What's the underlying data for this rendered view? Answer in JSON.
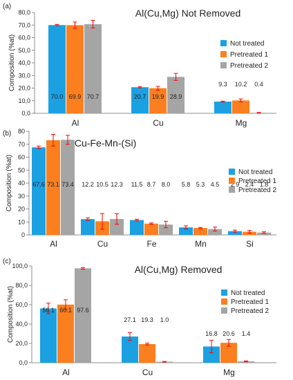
{
  "colors": {
    "not_treated": "#1ba1e2",
    "pretreated_1": "#fb7f1f",
    "pretreated_2": "#a5a5a5",
    "error_bar": "#ff0000",
    "axis": "#8c8c8c",
    "text": "#222222"
  },
  "chart_data": [
    {
      "type": "bar",
      "panel_label": "(a)",
      "title": "Al(Cu,Mg) Not Removed",
      "xlabel": "",
      "ylabel": "Composition (%at)",
      "ylim": [
        0,
        80
      ],
      "ytick_step": 10,
      "ytick_labels": [
        "0,0",
        "10,0",
        "20,0",
        "30,0",
        "40,0",
        "50,0",
        "60,0",
        "70,0",
        "80,0"
      ],
      "categories": [
        "Al",
        "Cu",
        "Mg"
      ],
      "series": [
        {
          "name": "Not treated",
          "values": [
            70.0,
            20.7,
            9.3
          ],
          "errors": [
            0.5,
            0.5,
            0.4
          ],
          "labels": [
            "70.0",
            "20.7",
            "9.3"
          ]
        },
        {
          "name": "Pretreated 1",
          "values": [
            69.9,
            19.9,
            10.2
          ],
          "errors": [
            2.5,
            1.5,
            1.2
          ],
          "labels": [
            "69.9",
            "19.9",
            "10.2"
          ]
        },
        {
          "name": "Pretreated 2",
          "values": [
            70.7,
            28.9,
            0.4
          ],
          "errors": [
            3.0,
            2.8,
            0.3
          ],
          "labels": [
            "70.7",
            "28.9",
            "0.4"
          ]
        }
      ],
      "legend": "right",
      "grid": false
    },
    {
      "type": "bar",
      "panel_label": "(b)",
      "title": "Al-Cu-Fe-Mn-(Si)",
      "xlabel": "",
      "ylabel": "Composition (%at)",
      "ylim": [
        0,
        80
      ],
      "ytick_step": 10,
      "ytick_labels": [
        "0",
        "10",
        "20",
        "30",
        "40",
        "50",
        "60",
        "70",
        "80"
      ],
      "categories": [
        "Al",
        "Cu",
        "Fe",
        "Mn",
        "Si"
      ],
      "series": [
        {
          "name": "Not treated",
          "values": [
            67.6,
            12.2,
            11.5,
            5.8,
            2.9
          ],
          "errors": [
            1.0,
            1.0,
            0.6,
            1.2,
            0.8
          ],
          "labels": [
            "67.6",
            "12.2",
            "11.5",
            "5.8",
            "2.9"
          ]
        },
        {
          "name": "Pretreated 1",
          "values": [
            73.1,
            10.5,
            8.7,
            5.3,
            2.4
          ],
          "errors": [
            4.5,
            6.0,
            0.5,
            0.5,
            1.0
          ],
          "labels": [
            "73.1",
            "10.5",
            "8.7",
            "5.3",
            "2.4"
          ]
        },
        {
          "name": "Pretreated 2",
          "values": [
            73.4,
            12.3,
            8.0,
            4.5,
            1.8
          ],
          "errors": [
            3.5,
            4.0,
            2.5,
            1.5,
            0.6
          ],
          "labels": [
            "73.4",
            "12.3",
            "8.0",
            "4.5",
            "1.8"
          ]
        }
      ],
      "legend": "right",
      "grid": false
    },
    {
      "type": "bar",
      "panel_label": "(c)",
      "title": "Al(Cu,Mg) Removed",
      "xlabel": "",
      "ylabel": "Composition (%at)",
      "ylim": [
        0,
        100
      ],
      "ytick_step": 20,
      "ytick_labels": [
        "0,0",
        "20,0",
        "40,0",
        "60,0",
        "80,0",
        "100,0"
      ],
      "categories": [
        "Al",
        "Cu",
        "Mg"
      ],
      "series": [
        {
          "name": "Not treated",
          "values": [
            56.1,
            27.1,
            16.8
          ],
          "errors": [
            5.5,
            4.0,
            6.5
          ],
          "labels": [
            "56.1",
            "27.1",
            "16.8"
          ]
        },
        {
          "name": "Pretreated 1",
          "values": [
            60.1,
            19.3,
            20.6
          ],
          "errors": [
            5.0,
            1.0,
            3.5
          ],
          "labels": [
            "60.1",
            "19.3",
            "20.6"
          ]
        },
        {
          "name": "Pretreated 2",
          "values": [
            97.6,
            1.0,
            1.4
          ],
          "errors": [
            0.8,
            0.3,
            0.5
          ],
          "labels": [
            "97.6",
            "1.0",
            "1.4"
          ]
        }
      ],
      "legend": "right",
      "grid": false
    }
  ]
}
